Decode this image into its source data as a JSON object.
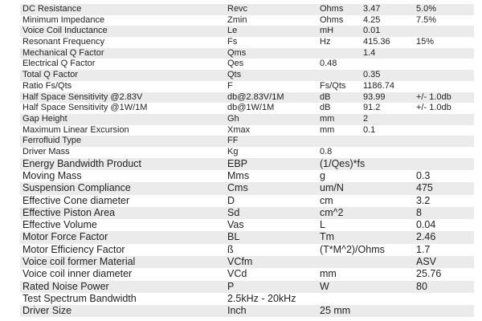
{
  "table": {
    "rows": [
      [
        "DC Resistance",
        "Revc",
        "Ohms",
        "3.47",
        "5.0%"
      ],
      [
        "Minimum Impedance",
        "Zmin",
        "Ohms",
        "4.25",
        "7.5%"
      ],
      [
        "Voice Coil Inductance",
        "Le",
        "mH",
        "0.01",
        ""
      ],
      [
        "Resonant Frequency",
        "Fs",
        "Hz",
        "415.36",
        "15%"
      ],
      [
        "Mechanical Q Factor",
        "Qms",
        "",
        "1.4",
        ""
      ],
      [
        "Electrical Q Factor",
        "Qes",
        "0.48",
        "",
        ""
      ],
      [
        "Total Q Factor",
        "Qts",
        "",
        "0.35",
        ""
      ],
      [
        "Ratio Fs/Qts",
        "F",
        "Fs/Qts",
        "1186.74",
        ""
      ],
      [
        "Half Space Sensitivity @2.83V",
        "db@2.83V/1M",
        "dB",
        "93.99",
        "+/- 1.0db"
      ],
      [
        "Half Space Sensitivity @1W/1M",
        "db@1W/1M",
        "dB",
        "91.2",
        "+/- 1.0db"
      ],
      [
        "Gap Height",
        "Gh",
        "mm",
        "2",
        ""
      ],
      [
        "Maximum Linear Excursion",
        "Xmax",
        "mm",
        "0.1",
        ""
      ],
      [
        "Ferrofluid Type",
        "FF",
        "",
        "",
        ""
      ],
      [
        "Driver Mass",
        "Kg",
        "0.8",
        "",
        ""
      ],
      [
        "Energy Bandwidth Product",
        "EBP",
        "(1/Qes)*fs",
        "",
        ""
      ],
      [
        "Moving Mass",
        "Mms",
        "g",
        "",
        "0.3"
      ],
      [
        "Suspension Compliance",
        "Cms",
        "um/N",
        "",
        "475"
      ],
      [
        "Effective Cone diameter",
        "D",
        "cm",
        "",
        "3.2"
      ],
      [
        "Effective Piston Area",
        "Sd",
        "cm^2",
        "",
        "8"
      ],
      [
        "Effective Volume",
        "Vas",
        "L",
        "",
        "0.04"
      ],
      [
        "Motor Force Factor",
        "BL",
        "Tm",
        "",
        "2.46"
      ],
      [
        "Motor Efficiency Factor",
        "ß",
        "(T*M^2)/Ohms",
        "",
        "1.7"
      ],
      [
        "Voice coil former Material",
        "VCfm",
        "",
        "",
        "ASV"
      ],
      [
        "Voice coil inner diameter",
        "VCd",
        "mm",
        "",
        "25.76"
      ],
      [
        "Rated Noise Power",
        "P",
        "W",
        "",
        "80"
      ],
      [
        "Test Spectrum Bandwidth",
        "2.5kHz - 20kHz",
        "",
        "",
        ""
      ],
      [
        "Driver Size",
        "Inch",
        "25 mm",
        "",
        ""
      ]
    ],
    "shade_color": "#ebebeb"
  }
}
